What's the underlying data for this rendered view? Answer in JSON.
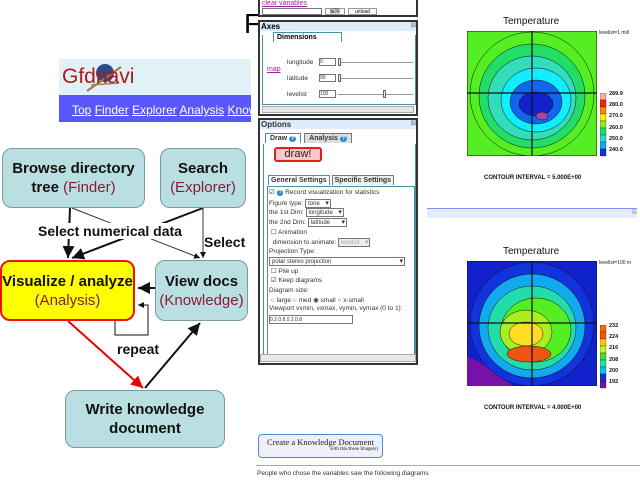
{
  "slide_title_partial": "F",
  "gfdnavi": {
    "logo_text": "Gfdnavi",
    "nav": [
      "Top",
      "Finder",
      "Explorer",
      "Analysis",
      "Know"
    ]
  },
  "flow": {
    "browse": {
      "title": "Browse directory tree",
      "title1": "Browse directory",
      "title2": "tree",
      "app": "(Finder)"
    },
    "search": {
      "title": "Search",
      "app": "(Explorer)"
    },
    "visualize": {
      "title": "Visualize / analyze",
      "app": "(Analysis)"
    },
    "viewdocs": {
      "title": "View docs",
      "app": "(Knowledge)"
    },
    "write": {
      "line1": "Write knowledge",
      "line2": "document"
    },
    "label_select_numerical": "Select numerical data",
    "label_select": "Select",
    "label_repeat": "repeat"
  },
  "top_panel": {
    "clear_variables": "clear variables",
    "btn1": "解除",
    "btn2": "unload"
  },
  "axes": {
    "header": "Axes",
    "tab": "Dimensions",
    "map_link": "map",
    "dims": [
      {
        "label": "longitude",
        "value": "0",
        "slider": 0
      },
      {
        "label": "latitude",
        "value": "90",
        "slider": 0
      },
      {
        "label": "levelist",
        "value": "100",
        "slider": 0.6
      }
    ]
  },
  "options": {
    "header": "Options",
    "tabs": [
      "Draw",
      "Analysis"
    ],
    "draw_button": "draw!",
    "subtabs": [
      "General Settings",
      "Specific Settings"
    ],
    "record_label": "Record visualization for statistics",
    "record_checked": true,
    "figure_type_label": "Figure type:",
    "figure_type": "tone",
    "dim1_label": "the 1st Dim:",
    "dim1": "longitude",
    "dim2_label": "the 2nd Dim:",
    "dim2": "latitude",
    "animation_label": "Animation",
    "animation_checked": false,
    "animate_dim_label": "dimension to animate:",
    "animate_dim": "levelist",
    "projection_label": "Projection Type:",
    "projection": "polar stereo projection",
    "pileup_label": "Pile up",
    "pileup_checked": false,
    "keep_label": "Keep diagrams",
    "keep_checked": true,
    "diagram_size_label": "Diagram size:",
    "sizes": [
      "large",
      "med",
      "small",
      "x-small"
    ],
    "size_selected": "small",
    "viewport_label": "Viewport vxmin, vxmax, vymin, vymax (0 to 1):",
    "viewport_value": "0.2,0.8,0.2,0.8"
  },
  "create_doc": {
    "label": "Create a Knowledge Document",
    "sub": "with this/these Image(s)"
  },
  "people_text": "People who chose the variables saw the following diagrams",
  "maps": [
    {
      "title": "Temperature",
      "level": "levelist=1 mill",
      "colorbar": [
        "289.9",
        "280.0",
        "270.0",
        "260.0",
        "250.0",
        "240.0"
      ],
      "contour": "CONTOUR INTERVAL = 5.000E+00"
    },
    {
      "title": "Temperature",
      "level": "levelist=100 m",
      "colorbar": [
        "232",
        "224",
        "216",
        "208",
        "200",
        "192"
      ],
      "contour": "CONTOUR INTERVAL = 4.000E+00"
    }
  ]
}
